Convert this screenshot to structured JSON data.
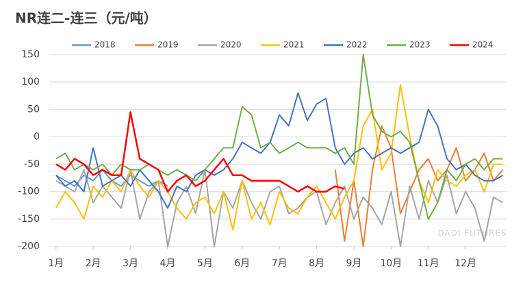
{
  "chart_data": {
    "type": "line",
    "title": "NR连二-连三（元/吨）",
    "watermark": "DADI FUTURES",
    "x": [
      1,
      1.25,
      1.5,
      1.75,
      2,
      2.25,
      2.5,
      2.75,
      3,
      3.25,
      3.5,
      3.75,
      4,
      4.25,
      4.5,
      4.75,
      5,
      5.25,
      5.5,
      5.75,
      6,
      6.25,
      6.5,
      6.75,
      7,
      7.25,
      7.5,
      7.75,
      8,
      8.25,
      8.5,
      8.75,
      9,
      9.25,
      9.5,
      9.75,
      10,
      10.25,
      10.5,
      10.75,
      11,
      11.25,
      11.5,
      11.75,
      12,
      12.25,
      12.5,
      12.75,
      13
    ],
    "xlim": [
      0.82,
      13.1
    ],
    "xticks": [
      {
        "value": 1,
        "label": "1月"
      },
      {
        "value": 2,
        "label": "2月"
      },
      {
        "value": 3,
        "label": "3月"
      },
      {
        "value": 4,
        "label": "4月"
      },
      {
        "value": 5,
        "label": "5月"
      },
      {
        "value": 6,
        "label": "6月"
      },
      {
        "value": 7,
        "label": "7月"
      },
      {
        "value": 8,
        "label": "8月"
      },
      {
        "value": 9,
        "label": "9月"
      },
      {
        "value": 10,
        "label": "10月"
      },
      {
        "value": 11,
        "label": "11月"
      },
      {
        "value": 12,
        "label": "12月"
      }
    ],
    "ylim": [
      -200,
      150
    ],
    "yticks": [
      -200,
      -150,
      -100,
      -50,
      0,
      50,
      100,
      150
    ],
    "grid": true,
    "legend": "top",
    "series": [
      {
        "name": "2018",
        "color": "#5b9bd5",
        "values": [
          -70,
          -80,
          -90,
          -70,
          -80,
          -60,
          -80,
          -90,
          -70,
          -80,
          -90,
          -80,
          -90,
          null,
          null,
          null,
          null,
          null,
          null,
          null,
          null,
          null,
          null,
          null,
          null,
          null,
          null,
          null,
          null,
          null,
          null,
          null,
          null,
          null,
          null,
          null,
          null,
          null,
          null,
          null,
          null,
          null,
          null,
          null,
          null,
          null,
          null,
          null,
          null
        ]
      },
      {
        "name": "2019",
        "color": "#ed7d31",
        "values": [
          null,
          null,
          null,
          null,
          null,
          null,
          null,
          null,
          null,
          null,
          null,
          null,
          null,
          null,
          null,
          null,
          null,
          null,
          null,
          null,
          null,
          null,
          null,
          null,
          null,
          null,
          null,
          null,
          null,
          null,
          -60,
          -190,
          -80,
          -200,
          -60,
          20,
          -20,
          -140,
          -100,
          -60,
          -40,
          -80,
          -60,
          -20,
          -80,
          -60,
          -30,
          -80,
          -60
        ]
      },
      {
        "name": "2020",
        "color": "#a5a5a5",
        "values": [
          -80,
          -90,
          -100,
          -60,
          -120,
          -90,
          -110,
          -130,
          -60,
          -150,
          -100,
          -80,
          -200,
          -120,
          -90,
          -140,
          -60,
          -200,
          -100,
          -130,
          -80,
          -120,
          -150,
          -100,
          -90,
          -140,
          -130,
          -110,
          -100,
          -160,
          -120,
          -90,
          -150,
          -110,
          -130,
          -160,
          -100,
          -200,
          -90,
          -150,
          -80,
          -120,
          -70,
          -140,
          -100,
          -130,
          -190,
          -110,
          -120
        ]
      },
      {
        "name": "2021",
        "color": "#ffc000",
        "values": [
          -130,
          -100,
          -120,
          -150,
          -90,
          -110,
          -80,
          -100,
          -60,
          -90,
          -110,
          -80,
          -100,
          -130,
          -150,
          -120,
          -110,
          -140,
          -100,
          -170,
          -80,
          -150,
          -120,
          -160,
          -100,
          -130,
          -140,
          -110,
          -90,
          -120,
          -150,
          -110,
          -80,
          20,
          50,
          -60,
          -30,
          95,
          0,
          -80,
          -120,
          -60,
          -80,
          -90,
          -70,
          -60,
          -100,
          -50,
          -50
        ]
      },
      {
        "name": "2022",
        "color": "#4472c4",
        "values": [
          -70,
          -90,
          -80,
          -100,
          -20,
          -90,
          -80,
          -70,
          -90,
          -60,
          -80,
          -100,
          -130,
          -90,
          -100,
          -70,
          -60,
          -70,
          -60,
          -40,
          -10,
          -20,
          -30,
          -10,
          40,
          20,
          80,
          30,
          60,
          70,
          -20,
          -50,
          -30,
          -20,
          -40,
          -30,
          -20,
          -30,
          -20,
          -10,
          50,
          20,
          -40,
          -60,
          -50,
          -70,
          -80,
          -80,
          -70
        ]
      },
      {
        "name": "2023",
        "color": "#70ad47",
        "values": [
          -40,
          -30,
          -60,
          -50,
          -60,
          -50,
          -70,
          -50,
          -60,
          -60,
          -50,
          -60,
          -70,
          -60,
          -70,
          -80,
          -60,
          -40,
          -20,
          -20,
          55,
          40,
          -20,
          -10,
          -30,
          -20,
          -10,
          -20,
          -20,
          -20,
          -30,
          -20,
          -50,
          150,
          40,
          10,
          0,
          10,
          -10,
          -80,
          -150,
          -120,
          -60,
          -80,
          -50,
          -40,
          -60,
          -40,
          -40
        ]
      },
      {
        "name": "2024",
        "color": "#ff0000",
        "values": [
          -50,
          -60,
          -40,
          -50,
          -70,
          -60,
          -70,
          -70,
          45,
          -40,
          -50,
          -60,
          -100,
          -80,
          -70,
          -90,
          -80,
          -60,
          -40,
          -70,
          -70,
          -80,
          -80,
          -80,
          -80,
          -90,
          -100,
          -90,
          -100,
          -100,
          -90,
          -95,
          null,
          null,
          null,
          null,
          null,
          null,
          null,
          null,
          null,
          null,
          null,
          null,
          null,
          null,
          null,
          null,
          null
        ]
      }
    ]
  }
}
